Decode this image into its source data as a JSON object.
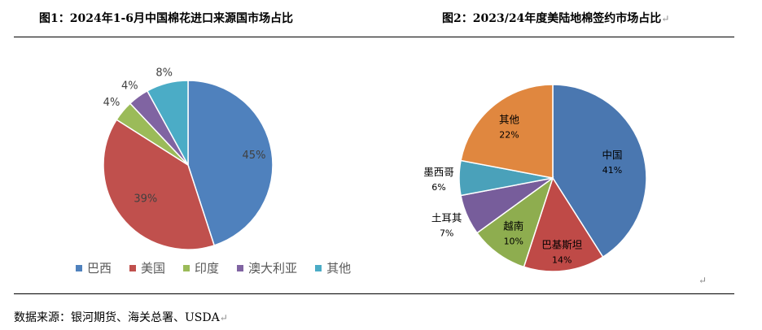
{
  "titles": {
    "chart1": "图1：2024年1-6月中国棉花进口来源国市场占比",
    "chart2": "图2：2023/24年度美陆地棉签约市场占比"
  },
  "source": "数据来源：银河期货、海关总署、USDA",
  "return_mark": "↵",
  "chart_data": [
    {
      "type": "pie",
      "title": "图1：2024年1-6月中国棉花进口来源国市场占比",
      "legend_position": "bottom",
      "categories": [
        "巴西",
        "美国",
        "印度",
        "澳大利亚",
        "其他"
      ],
      "values": [
        45,
        39,
        4,
        4,
        8
      ],
      "labels": [
        "45%",
        "39%",
        "4%",
        "4%",
        "8%"
      ],
      "colors": [
        "#4f81bd",
        "#c0504d",
        "#9bbb59",
        "#8064a2",
        "#4bacc6"
      ]
    },
    {
      "type": "pie",
      "title": "图2：2023/24年度美陆地棉签约市场占比",
      "legend_position": "none",
      "categories": [
        "中国",
        "巴基斯坦",
        "越南",
        "土耳其",
        "墨西哥",
        "其他"
      ],
      "values": [
        41,
        14,
        10,
        7,
        6,
        22
      ],
      "labels": [
        "41%",
        "14%",
        "10%",
        "7%",
        "6%",
        "22%"
      ],
      "colors": [
        "#4a77b0",
        "#bf4a47",
        "#8ead4f",
        "#775d9b",
        "#4aa1ba",
        "#e0873f"
      ]
    }
  ]
}
